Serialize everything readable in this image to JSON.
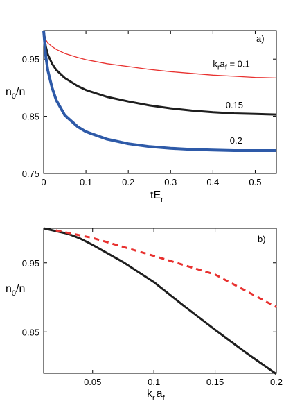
{
  "chart_data": [
    {
      "type": "line",
      "panel_label": "a)",
      "xlabel": {
        "main": "tE",
        "sub": "r"
      },
      "ylabel": {
        "main": "n",
        "sub": "0",
        "tail": "/n"
      },
      "xlim": [
        0,
        0.55
      ],
      "ylim": [
        0.75,
        1.0
      ],
      "xticks": [
        0,
        0.1,
        0.2,
        0.3,
        0.4,
        0.5
      ],
      "xtick_labels": [
        "0",
        "0.1",
        "0.2",
        "0.3",
        "0.4",
        "0.5"
      ],
      "yticks": [
        0.75,
        0.85,
        0.95
      ],
      "ytick_labels": [
        "0.75",
        "0.85",
        "0.95"
      ],
      "series": [
        {
          "color": "#e8312f",
          "width": 1.3,
          "points": [
            [
              0,
              1.0
            ],
            [
              0.005,
              0.984
            ],
            [
              0.01,
              0.978
            ],
            [
              0.02,
              0.972
            ],
            [
              0.03,
              0.967
            ],
            [
              0.05,
              0.96
            ],
            [
              0.08,
              0.953
            ],
            [
              0.1,
              0.949
            ],
            [
              0.15,
              0.942
            ],
            [
              0.2,
              0.937
            ],
            [
              0.25,
              0.932
            ],
            [
              0.3,
              0.928
            ],
            [
              0.35,
              0.925
            ],
            [
              0.4,
              0.922
            ],
            [
              0.45,
              0.92
            ],
            [
              0.5,
              0.918
            ],
            [
              0.55,
              0.917
            ]
          ]
        },
        {
          "color": "#1e1e1e",
          "width": 3,
          "points": [
            [
              0,
              1.0
            ],
            [
              0.005,
              0.972
            ],
            [
              0.01,
              0.958
            ],
            [
              0.02,
              0.942
            ],
            [
              0.03,
              0.931
            ],
            [
              0.05,
              0.917
            ],
            [
              0.08,
              0.903
            ],
            [
              0.1,
              0.896
            ],
            [
              0.15,
              0.884
            ],
            [
              0.2,
              0.876
            ],
            [
              0.25,
              0.869
            ],
            [
              0.3,
              0.864
            ],
            [
              0.35,
              0.86
            ],
            [
              0.4,
              0.857
            ],
            [
              0.45,
              0.855
            ],
            [
              0.5,
              0.854
            ],
            [
              0.55,
              0.853
            ]
          ]
        },
        {
          "color": "#2e5aa8",
          "width": 4,
          "points": [
            [
              0,
              1.0
            ],
            [
              0.005,
              0.955
            ],
            [
              0.01,
              0.93
            ],
            [
              0.02,
              0.9
            ],
            [
              0.03,
              0.878
            ],
            [
              0.05,
              0.852
            ],
            [
              0.08,
              0.832
            ],
            [
              0.1,
              0.823
            ],
            [
              0.15,
              0.81
            ],
            [
              0.2,
              0.802
            ],
            [
              0.25,
              0.797
            ],
            [
              0.3,
              0.794
            ],
            [
              0.35,
              0.792
            ],
            [
              0.4,
              0.791
            ],
            [
              0.45,
              0.79
            ],
            [
              0.5,
              0.79
            ],
            [
              0.55,
              0.79
            ]
          ]
        }
      ],
      "annotations": [
        {
          "k": "k",
          "ks": "r",
          "a": "a",
          "as": "f",
          "eq": " = 0.1",
          "x": 0.4,
          "y": 0.936
        },
        {
          "text": "0.15",
          "x": 0.43,
          "y": 0.864
        },
        {
          "text": "0.2",
          "x": 0.44,
          "y": 0.802
        }
      ]
    },
    {
      "type": "line",
      "panel_label": "b)",
      "xlabel": {
        "k": "k",
        "ks": "r",
        "a": "a",
        "as": "f"
      },
      "ylabel": {
        "main": "n",
        "sub": "0",
        "tail": "/n"
      },
      "xlim": [
        0.01,
        0.2
      ],
      "ylim": [
        0.79,
        1.0
      ],
      "xticks": [
        0.05,
        0.1,
        0.15,
        0.2
      ],
      "xtick_labels": [
        "0.05",
        "0.1",
        "0.15",
        "0.2"
      ],
      "yticks": [
        0.85,
        0.95
      ],
      "ytick_labels": [
        "0.85",
        "0.95"
      ],
      "series": [
        {
          "color": "#1e1e1e",
          "width": 3,
          "dash": "",
          "points": [
            [
              0.01,
              1.0
            ],
            [
              0.02,
              0.996
            ],
            [
              0.03,
              0.992
            ],
            [
              0.04,
              0.985
            ],
            [
              0.05,
              0.976
            ],
            [
              0.075,
              0.951
            ],
            [
              0.1,
              0.922
            ],
            [
              0.125,
              0.887
            ],
            [
              0.15,
              0.853
            ],
            [
              0.175,
              0.82
            ],
            [
              0.2,
              0.789
            ]
          ]
        },
        {
          "color": "#e8312f",
          "width": 3,
          "dash": "8,6",
          "points": [
            [
              0.02,
              0.997
            ],
            [
              0.05,
              0.986
            ],
            [
              0.1,
              0.96
            ],
            [
              0.15,
              0.933
            ],
            [
              0.2,
              0.886
            ]
          ]
        }
      ]
    }
  ]
}
